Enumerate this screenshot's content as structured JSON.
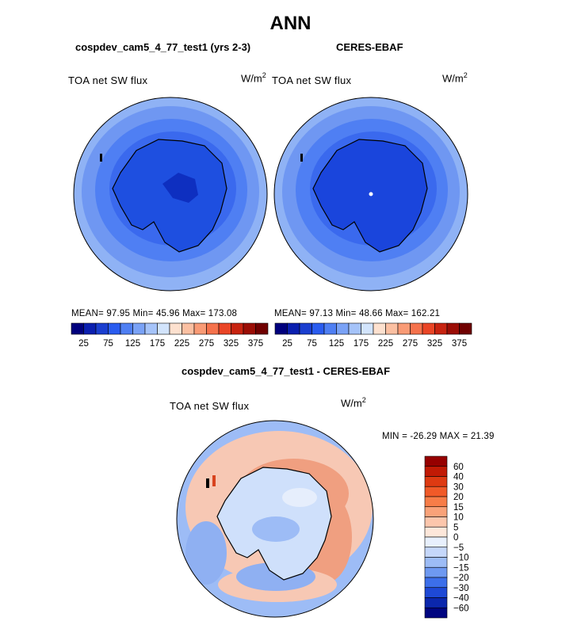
{
  "title": "ANN",
  "colors": {
    "ocean_low": "#5b8af0",
    "ocean_mid": "#8fb2f5",
    "antarctica_model": "#1e4fe0",
    "antarctica_obs": "#1a45dc",
    "land_deep": "#0e2fc0",
    "diff_pos": "#f7c8b4",
    "diff_pos_strong": "#f09070",
    "diff_neg": "#cfe0fb",
    "diff_neg_strong": "#8fb0f2"
  },
  "panels": {
    "left": {
      "subtitle": "cospdev_cam5_4_77_test1 (yrs 2-3)",
      "variable": "TOA net SW flux",
      "units_base": "W/m",
      "units_exp": "2",
      "stats": "MEAN=  97.95   Min=  45.96   Max= 173.08"
    },
    "right": {
      "subtitle": "CERES-EBAF",
      "variable": "TOA net SW flux",
      "units_base": "W/m",
      "units_exp": "2",
      "stats": "MEAN=  97.13   Min=  48.66   Max= 162.21"
    },
    "diff": {
      "subtitle": "cospdev_cam5_4_77_test1 - CERES-EBAF",
      "variable": "TOA net SW flux",
      "units_base": "W/m",
      "units_exp": "2",
      "stats": "MIN = -26.29  MAX =   21.39"
    }
  },
  "chart_data": [
    {
      "type": "heatmap",
      "projection": "south-polar-stereographic",
      "title": "cospdev_cam5_4_77_test1 (yrs 2-3)",
      "variable": "TOA net SW flux",
      "units": "W/m2",
      "mean": 97.95,
      "min": 45.96,
      "max": 173.08,
      "colorbar": {
        "orientation": "horizontal",
        "tick_labels": [
          "25",
          "75",
          "125",
          "175",
          "225",
          "275",
          "325",
          "375"
        ],
        "colors": [
          "#00007d",
          "#0a1faf",
          "#1a3ecf",
          "#2a5cef",
          "#4f7ff3",
          "#7aa2f6",
          "#a5c3f9",
          "#d2e4fc",
          "#fde1cf",
          "#fbc0a2",
          "#f99b76",
          "#f5724c",
          "#ea4526",
          "#c72310",
          "#9b0d05",
          "#700000"
        ]
      }
    },
    {
      "type": "heatmap",
      "projection": "south-polar-stereographic",
      "title": "CERES-EBAF",
      "variable": "TOA net SW flux",
      "units": "W/m2",
      "mean": 97.13,
      "min": 48.66,
      "max": 162.21,
      "colorbar": {
        "orientation": "horizontal",
        "tick_labels": [
          "25",
          "75",
          "125",
          "175",
          "225",
          "275",
          "325",
          "375"
        ],
        "colors": [
          "#00007d",
          "#0a1faf",
          "#1a3ecf",
          "#2a5cef",
          "#4f7ff3",
          "#7aa2f6",
          "#a5c3f9",
          "#d2e4fc",
          "#fde1cf",
          "#fbc0a2",
          "#f99b76",
          "#f5724c",
          "#ea4526",
          "#c72310",
          "#9b0d05",
          "#700000"
        ]
      }
    },
    {
      "type": "heatmap",
      "projection": "south-polar-stereographic",
      "title": "cospdev_cam5_4_77_test1 - CERES-EBAF",
      "variable": "TOA net SW flux",
      "units": "W/m2",
      "min": -26.29,
      "max": 21.39,
      "colorbar": {
        "orientation": "vertical",
        "tick_labels": [
          "60",
          "40",
          "30",
          "20",
          "15",
          "10",
          "5",
          "0",
          "−5",
          "−10",
          "−15",
          "−20",
          "−30",
          "−40",
          "−60"
        ],
        "colors": [
          "#960000",
          "#c11a05",
          "#de3a12",
          "#f05a28",
          "#f77d48",
          "#f9a279",
          "#fcc6ac",
          "#fde7da",
          "#e8f0fd",
          "#c5d7fa",
          "#9dbcf6",
          "#6e99f1",
          "#3c6fea",
          "#1e49d6",
          "#0b27ad",
          "#000580"
        ]
      }
    }
  ]
}
